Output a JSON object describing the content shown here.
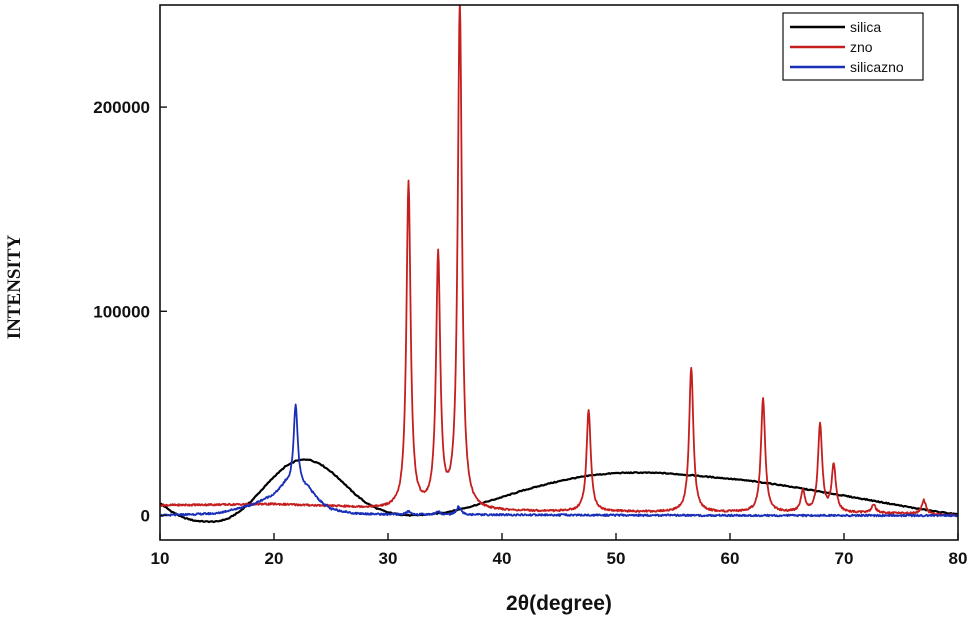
{
  "chart_data": {
    "type": "line",
    "xlabel": "2θ(degree)",
    "ylabel": "INTENSITY",
    "xlim": [
      10,
      80
    ],
    "ylim": [
      -12000,
      250000
    ],
    "xticks": [
      10,
      20,
      30,
      40,
      50,
      60,
      70,
      80
    ],
    "yticks": [
      0,
      100000,
      200000
    ],
    "ytick_labels": [
      "0",
      "100000",
      "200000"
    ],
    "grid": false,
    "legend_position": "top-right",
    "series": [
      {
        "name": "silica",
        "color": "#000000",
        "points": [
          [
            10,
            6000
          ],
          [
            11,
            2000
          ],
          [
            12,
            -1000
          ],
          [
            13,
            -2500
          ],
          [
            14,
            -3000
          ],
          [
            15,
            -3000
          ],
          [
            16,
            -1500
          ],
          [
            17,
            2000
          ],
          [
            18,
            7000
          ],
          [
            19,
            13000
          ],
          [
            20,
            19000
          ],
          [
            21,
            24000
          ],
          [
            22,
            27000
          ],
          [
            23,
            27500
          ],
          [
            24,
            25500
          ],
          [
            25,
            21500
          ],
          [
            26,
            16500
          ],
          [
            27,
            11000
          ],
          [
            28,
            6500
          ],
          [
            29,
            3500
          ],
          [
            30,
            1500
          ],
          [
            31,
            500
          ],
          [
            32,
            0
          ],
          [
            33,
            300
          ],
          [
            34,
            800
          ],
          [
            35,
            1500
          ],
          [
            36,
            2600
          ],
          [
            37,
            4000
          ],
          [
            38,
            5600
          ],
          [
            39,
            7300
          ],
          [
            40,
            9000
          ],
          [
            42,
            12500
          ],
          [
            44,
            15500
          ],
          [
            46,
            18000
          ],
          [
            48,
            19800
          ],
          [
            50,
            20800
          ],
          [
            52,
            21000
          ],
          [
            54,
            20800
          ],
          [
            56,
            20000
          ],
          [
            58,
            19000
          ],
          [
            60,
            18000
          ],
          [
            62,
            16800
          ],
          [
            64,
            15300
          ],
          [
            66,
            13500
          ],
          [
            68,
            11600
          ],
          [
            70,
            9700
          ],
          [
            72,
            7800
          ],
          [
            74,
            5800
          ],
          [
            76,
            3800
          ],
          [
            78,
            2000
          ],
          [
            80,
            500
          ]
        ]
      },
      {
        "name": "zno",
        "color": "#c41e1e",
        "baseline": [
          [
            10,
            5000
          ],
          [
            20,
            5500
          ],
          [
            25,
            4500
          ],
          [
            30,
            3000
          ],
          [
            35,
            2500
          ],
          [
            40,
            2000
          ],
          [
            50,
            1800
          ],
          [
            60,
            1500
          ],
          [
            70,
            1200
          ],
          [
            75,
            1000
          ],
          [
            80,
            0
          ]
        ],
        "peaks": [
          [
            31.8,
            160000
          ],
          [
            34.4,
            123000
          ],
          [
            36.3,
            248000
          ],
          [
            47.6,
            50000
          ],
          [
            56.6,
            71000
          ],
          [
            62.9,
            56000
          ],
          [
            66.4,
            10000
          ],
          [
            67.9,
            43000
          ],
          [
            69.1,
            23000
          ],
          [
            72.6,
            4000
          ],
          [
            77.0,
            7000
          ]
        ]
      },
      {
        "name": "silicazno",
        "color": "#1a2fb8",
        "baseline": [
          [
            10,
            0
          ],
          [
            15,
            1000
          ],
          [
            18,
            5000
          ],
          [
            20,
            10000
          ],
          [
            21,
            15000
          ],
          [
            23,
            13000
          ],
          [
            24,
            7000
          ],
          [
            25,
            3000
          ],
          [
            27,
            1000
          ],
          [
            30,
            500
          ],
          [
            40,
            300
          ],
          [
            60,
            0
          ],
          [
            80,
            0
          ]
        ],
        "peaks": [
          [
            21.9,
            40000
          ],
          [
            31.8,
            1500
          ],
          [
            34.4,
            1500
          ],
          [
            36.2,
            4000
          ]
        ]
      }
    ]
  }
}
